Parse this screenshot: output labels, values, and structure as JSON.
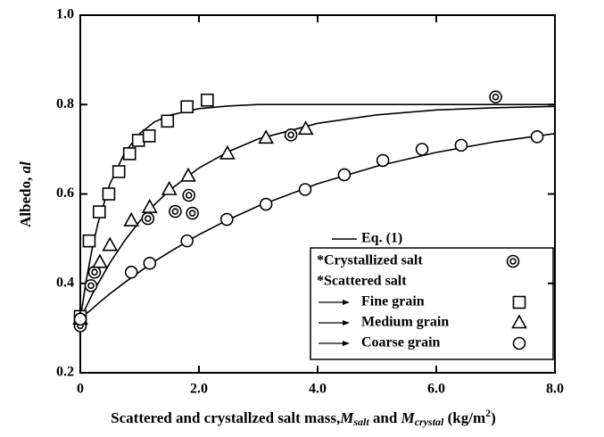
{
  "chart_data": {
    "type": "scatter",
    "xlabel": [
      "Scattered and crystallzed salt mass,",
      "M",
      "salt",
      " and ",
      "M",
      "crystal",
      " (kg/m",
      "2",
      ")"
    ],
    "ylabel": [
      "Albedo, ",
      "al"
    ],
    "xlim": [
      0,
      8
    ],
    "ylim": [
      0.2,
      1.0
    ],
    "xticks": [
      0,
      {
        "value": 2,
        "label": "2.0"
      },
      {
        "value": 4,
        "label": "4.0"
      },
      {
        "value": 6,
        "label": "6.0"
      },
      {
        "value": 8,
        "label": "8.0"
      }
    ],
    "yticks": [
      0.2,
      0.4,
      0.6,
      0.8,
      {
        "value": 1,
        "label": "1.0"
      }
    ],
    "legend_heading": "*Scattered salt",
    "series": [
      {
        "name": "*Crystallized salt",
        "marker": "double-circle",
        "color": "#000000",
        "x": [
          0,
          0.18,
          0.24,
          1.14,
          1.6,
          1.83,
          1.89,
          3.55,
          7.0
        ],
        "values": [
          0.305,
          0.395,
          0.425,
          0.545,
          0.561,
          0.597,
          0.557,
          0.732,
          0.817
        ]
      },
      {
        "name": "Fine grain",
        "marker": "square",
        "color": "#000000",
        "x": [
          0,
          0.15,
          0.32,
          0.48,
          0.65,
          0.83,
          0.98,
          1.16,
          1.47,
          1.8,
          2.14
        ],
        "values": [
          0.326,
          0.495,
          0.56,
          0.6,
          0.65,
          0.69,
          0.72,
          0.73,
          0.763,
          0.795,
          0.81
        ]
      },
      {
        "name": "Medium grain",
        "marker": "triangle",
        "color": "#000000",
        "x": [
          0,
          0.33,
          0.5,
          0.86,
          1.17,
          1.5,
          1.82,
          2.48,
          3.13,
          3.8
        ],
        "values": [
          0.32,
          0.447,
          0.485,
          0.54,
          0.57,
          0.61,
          0.64,
          0.69,
          0.725,
          0.745
        ]
      },
      {
        "name": "Coarse grain",
        "marker": "circle",
        "color": "#000000",
        "x": [
          0,
          0.86,
          1.17,
          1.8,
          2.47,
          3.13,
          3.79,
          4.45,
          5.1,
          5.76,
          6.42,
          7.7
        ],
        "values": [
          0.32,
          0.425,
          0.445,
          0.495,
          0.543,
          0.577,
          0.61,
          0.643,
          0.675,
          0.7,
          0.709,
          0.728
        ]
      }
    ],
    "fit": {
      "name": "Eq. (1)",
      "color": "#000000",
      "curves": [
        {
          "x": [
            0,
            0.1,
            0.2,
            0.3,
            0.5,
            0.75,
            1,
            1.25,
            1.5,
            2,
            2.5,
            3,
            4,
            5,
            6,
            7,
            8
          ],
          "values": [
            0.32,
            0.407,
            0.478,
            0.536,
            0.623,
            0.693,
            0.735,
            0.761,
            0.776,
            0.791,
            0.797,
            0.8,
            0.8,
            0.8,
            0.8,
            0.8,
            0.8
          ]
        },
        {
          "x": [
            0,
            0.1,
            0.2,
            0.3,
            0.5,
            0.75,
            1,
            1.25,
            1.5,
            2,
            2.5,
            3,
            4,
            5,
            6,
            7,
            8
          ],
          "values": [
            0.32,
            0.348,
            0.375,
            0.4,
            0.446,
            0.496,
            0.539,
            0.576,
            0.608,
            0.658,
            0.695,
            0.723,
            0.758,
            0.777,
            0.788,
            0.793,
            0.796
          ]
        },
        {
          "x": [
            0,
            0.1,
            0.2,
            0.3,
            0.5,
            0.75,
            1,
            1.25,
            1.5,
            2,
            2.5,
            3,
            4,
            5,
            6,
            7,
            8
          ],
          "values": [
            0.32,
            0.332,
            0.343,
            0.355,
            0.377,
            0.402,
            0.426,
            0.449,
            0.47,
            0.509,
            0.543,
            0.573,
            0.623,
            0.662,
            0.693,
            0.717,
            0.735
          ]
        }
      ]
    }
  }
}
